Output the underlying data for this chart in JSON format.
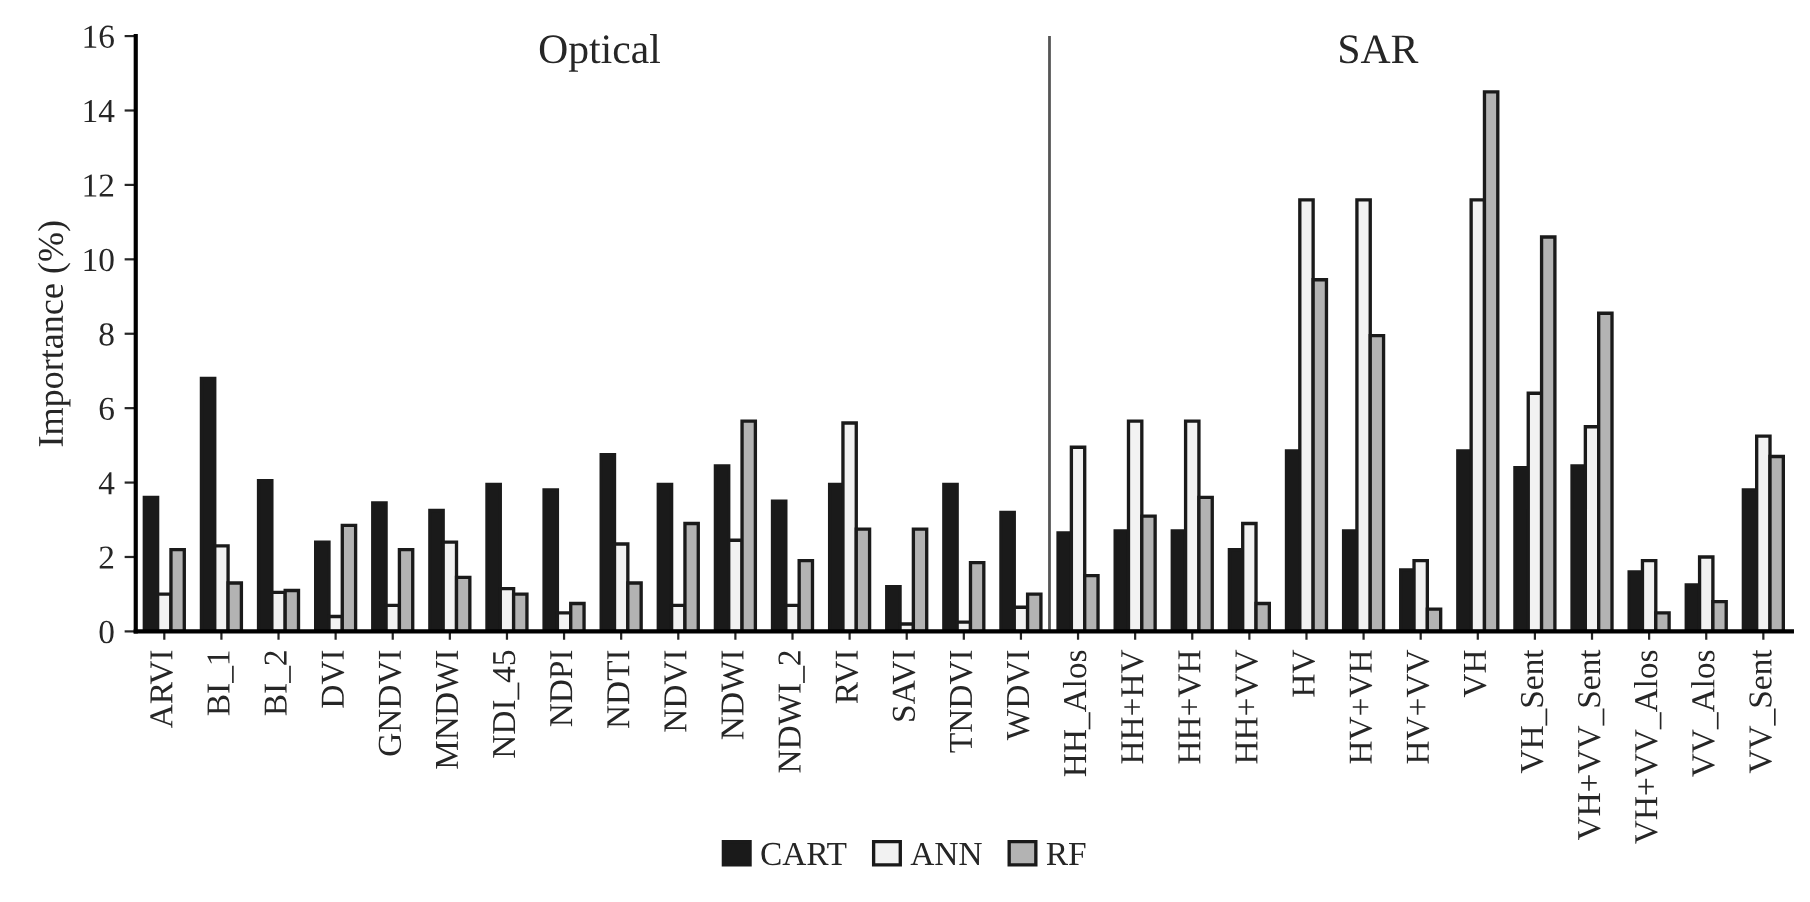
{
  "chart_data": {
    "type": "bar",
    "ylabel": "Importance (%)",
    "categories": [
      "ARVI",
      "BI_1",
      "BI_2",
      "DVI",
      "GNDVI",
      "MNDWI",
      "NDI_45",
      "NDPI",
      "NDTI",
      "NDVI",
      "NDWI",
      "NDWI_2",
      "RVI",
      "SAVI",
      "TNDVI",
      "WDVI",
      "HH_Alos",
      "HH+HV",
      "HH+VH",
      "HH+VV",
      "HV",
      "HV+VH",
      "HV+VV",
      "VH",
      "VH_Sent",
      "VH+VV_Sent",
      "VH+VV_Alos",
      "VV_Alos",
      "VV_Sent"
    ],
    "series": [
      {
        "name": "CART",
        "color": "#1a1a1a",
        "values": [
          3.6,
          6.8,
          4.05,
          2.4,
          3.45,
          3.25,
          3.95,
          3.8,
          4.75,
          3.95,
          4.45,
          3.5,
          3.95,
          1.2,
          3.95,
          3.2,
          2.65,
          2.7,
          2.7,
          2.2,
          4.85,
          2.7,
          1.65,
          4.85,
          4.4,
          4.45,
          1.6,
          1.25,
          3.8
        ]
      },
      {
        "name": "ANN",
        "color": "#f2f2f2",
        "values": [
          1.0,
          2.3,
          1.05,
          0.4,
          0.7,
          2.4,
          1.15,
          0.5,
          2.35,
          0.7,
          2.45,
          0.7,
          5.6,
          0.2,
          0.25,
          0.65,
          4.95,
          5.65,
          5.65,
          2.9,
          11.6,
          11.6,
          1.9,
          11.6,
          6.4,
          5.5,
          1.9,
          2.0,
          5.25
        ]
      },
      {
        "name": "RF",
        "color": "#b3b3b3",
        "values": [
          2.2,
          1.3,
          1.1,
          2.85,
          2.2,
          1.45,
          1.0,
          0.75,
          1.3,
          2.9,
          5.65,
          1.9,
          2.75,
          2.75,
          1.85,
          1.0,
          1.5,
          3.1,
          3.6,
          0.75,
          9.45,
          7.95,
          0.6,
          14.5,
          10.6,
          8.55,
          0.5,
          0.8,
          4.7
        ]
      }
    ],
    "ylim": [
      0,
      16
    ],
    "yticks": [
      0,
      2,
      4,
      6,
      8,
      10,
      12,
      14,
      16
    ],
    "annotations": [
      "Optical",
      "SAR"
    ],
    "legend": "bottom",
    "grid": false
  }
}
